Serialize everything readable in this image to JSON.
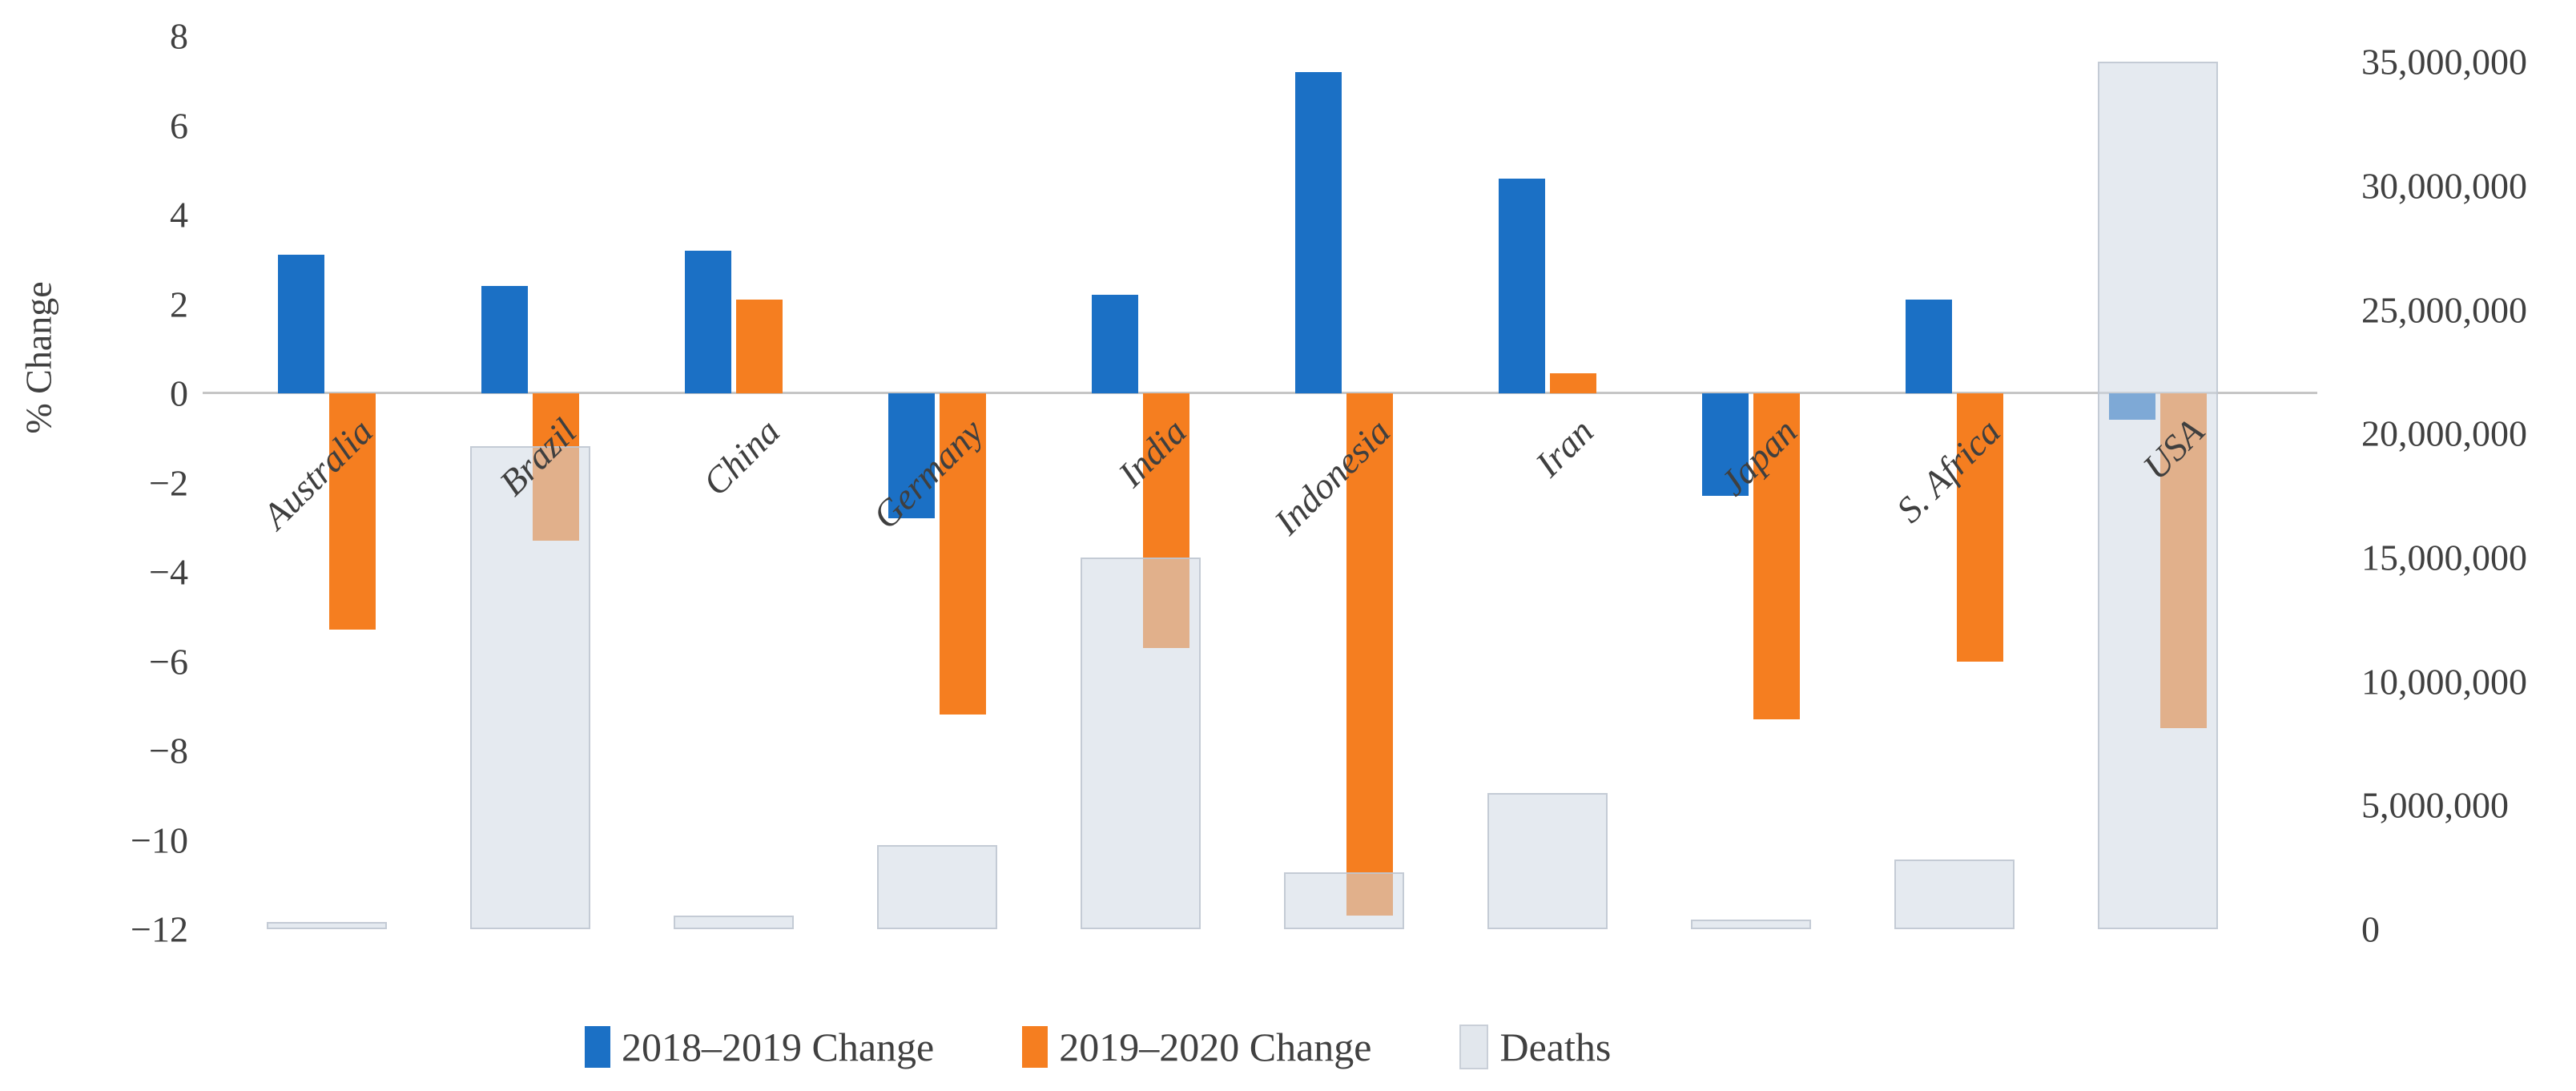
{
  "chart_data": {
    "type": "bar",
    "title": "",
    "categories": [
      "Australia",
      "Brazil",
      "China",
      "Germany",
      "India",
      "Indonesia",
      "Iran",
      "Japan",
      "S. Africa",
      "USA"
    ],
    "series": [
      {
        "name": "2018–2019 Change",
        "axis": "left",
        "color": "#1b70c5",
        "values": [
          3.1,
          2.4,
          3.2,
          -2.8,
          2.2,
          7.2,
          4.8,
          -2.3,
          2.1,
          -0.6
        ]
      },
      {
        "name": "2019–2020 Change",
        "axis": "left",
        "color": "#f57e20",
        "values": [
          -5.3,
          -3.3,
          2.1,
          -7.2,
          -5.7,
          -11.7,
          0.45,
          -7.3,
          -6.0,
          -7.5
        ]
      },
      {
        "name": "Deaths",
        "axis": "right",
        "color": "#e2e7ed",
        "values": [
          300000,
          19500000,
          550000,
          3400000,
          15000000,
          2300000,
          5500000,
          400000,
          2800000,
          35000000
        ]
      }
    ],
    "ylabel_left": "% Change",
    "left_axis": {
      "min": -12,
      "max": 8,
      "step": 2,
      "tick_labels": [
        "8",
        "6",
        "4",
        "2",
        "0",
        "−2",
        "−4",
        "−6",
        "−8",
        "−10",
        "−12"
      ],
      "tick_values": [
        8,
        6,
        4,
        2,
        0,
        -2,
        -4,
        -6,
        -8,
        -10,
        -12
      ]
    },
    "right_axis": {
      "min": 0,
      "max": 35000000,
      "step": 5000000,
      "tick_labels": [
        "35,000,000",
        "30,000,000",
        "25,000,000",
        "20,000,000",
        "15,000,000",
        "10,000,000",
        "5,000,000",
        "0"
      ],
      "tick_values": [
        35000000,
        30000000,
        25000000,
        20000000,
        15000000,
        10000000,
        5000000,
        0
      ]
    },
    "legend_position": "bottom",
    "grid": false
  },
  "legend": {
    "items": [
      {
        "label": "2018–2019 Change",
        "color": "#1b70c5"
      },
      {
        "label": "2019–2020 Change",
        "color": "#f57e20"
      },
      {
        "label": "Deaths",
        "color": "#e2e7ed"
      }
    ]
  },
  "axis_title_left": "% Change",
  "colors": {
    "blue": "#1b70c5",
    "orange": "#f57e20",
    "deaths_fill": "#e2e7ed",
    "deaths_border": "#c9cfd8",
    "axis_line": "#c6c6c6",
    "text": "#404040"
  }
}
